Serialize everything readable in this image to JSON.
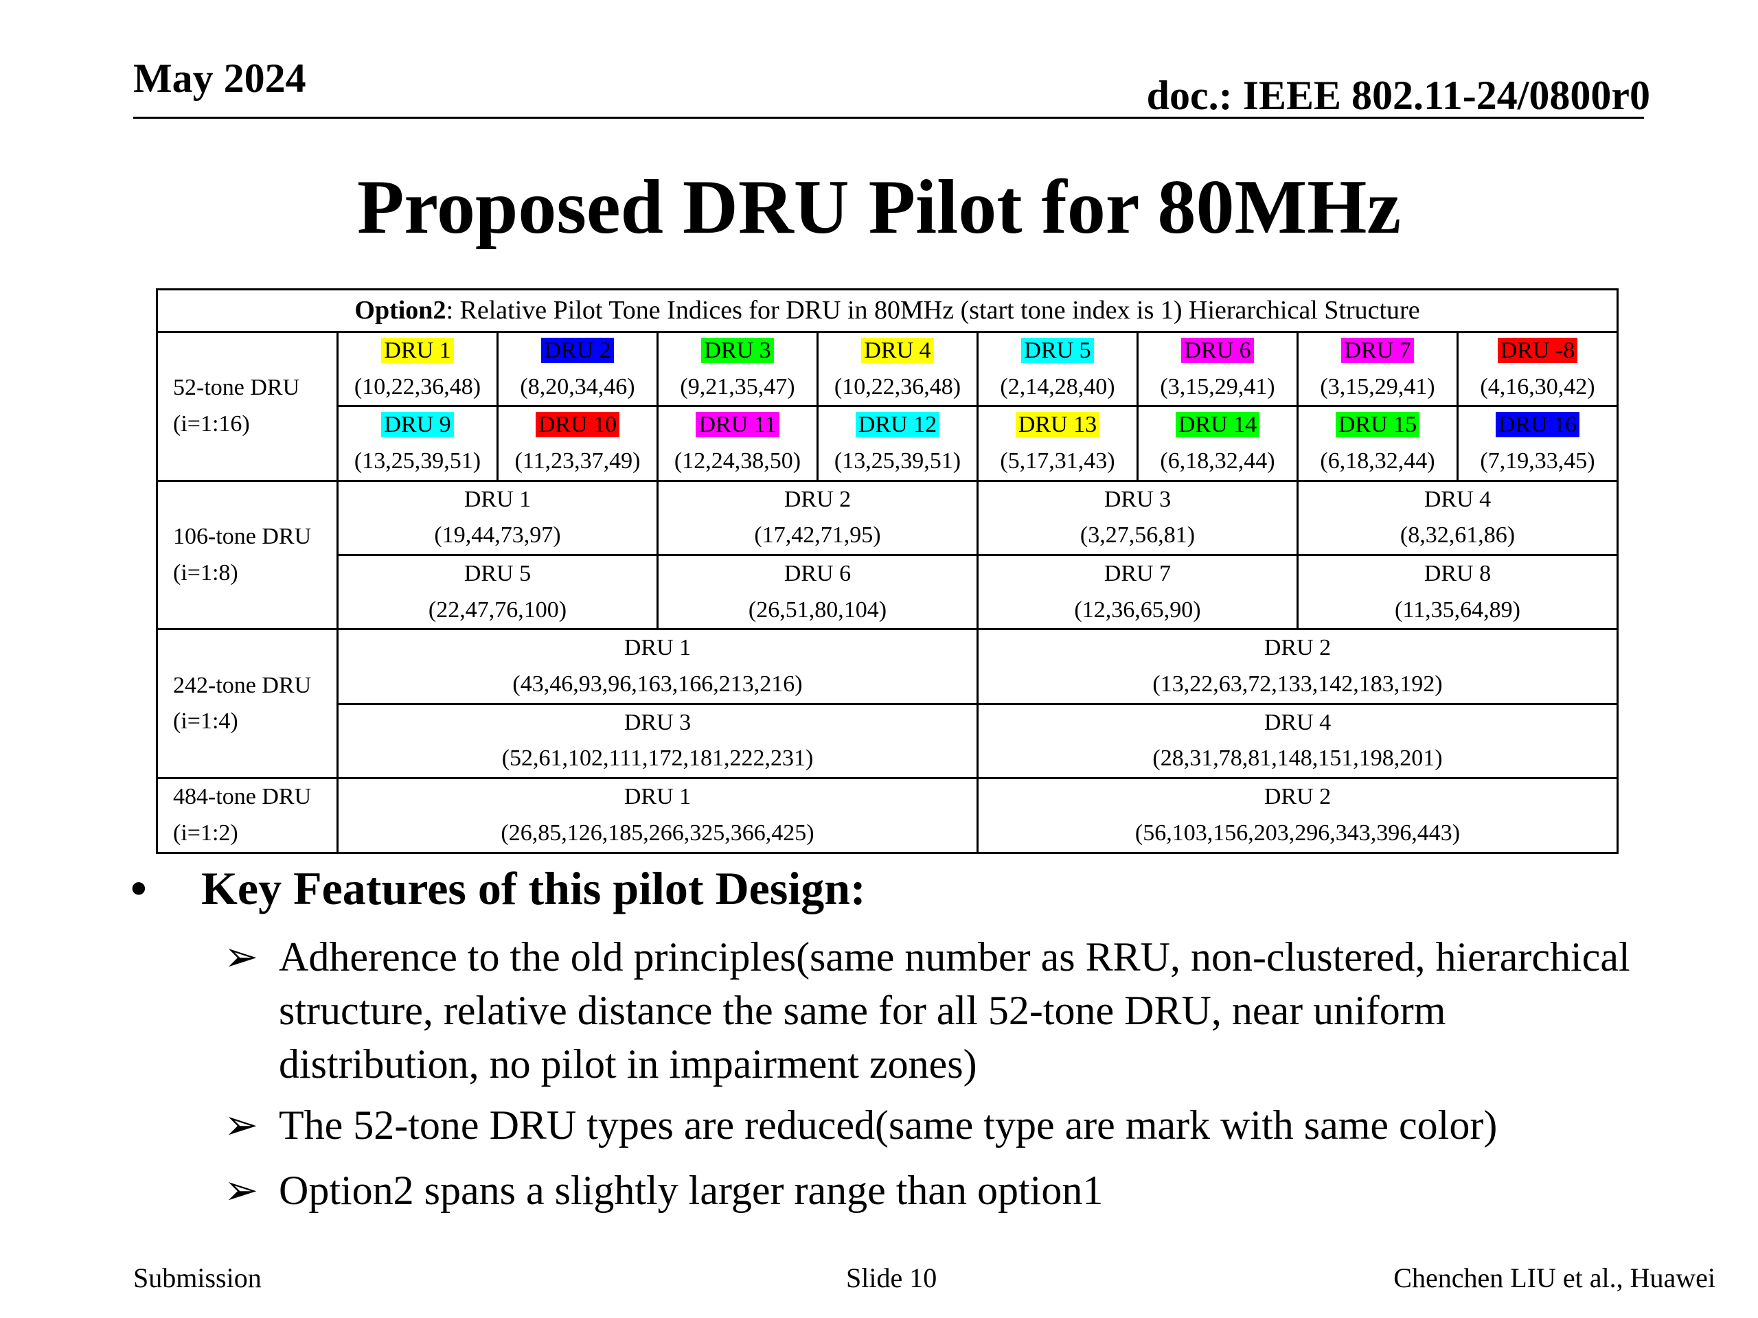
{
  "header": {
    "date": "May 2024",
    "doc": "doc.: IEEE 802.11-24/0800r0"
  },
  "title": "Proposed DRU Pilot for 80MHz",
  "table": {
    "caption_bold": "Option2",
    "caption_rest": ": Relative Pilot Tone Indices for DRU in 80MHz (start tone index is 1)  Hierarchical Structure",
    "tone52": {
      "label": "52-tone DRU",
      "range": "(i=1:16)",
      "cells": [
        {
          "name": "DRU 1",
          "idx": "(10,22,36,48)",
          "color": "#ffff00"
        },
        {
          "name": "DRU 2",
          "idx": "(8,20,34,46)",
          "color": "#0000ff"
        },
        {
          "name": "DRU 3",
          "idx": "(9,21,35,47)",
          "color": "#00ff00"
        },
        {
          "name": "DRU 4",
          "idx": "(10,22,36,48)",
          "color": "#ffff00"
        },
        {
          "name": "DRU 5",
          "idx": "(2,14,28,40)",
          "color": "#00ffff"
        },
        {
          "name": "DRU 6",
          "idx": "(3,15,29,41)",
          "color": "#ff00ff"
        },
        {
          "name": "DRU 7",
          "idx": "(3,15,29,41)",
          "color": "#ff00ff"
        },
        {
          "name": "DRU -8",
          "idx": "(4,16,30,42)",
          "color": "#ff0000"
        },
        {
          "name": "DRU 9",
          "idx": "(13,25,39,51)",
          "color": "#00ffff"
        },
        {
          "name": "DRU 10",
          "idx": "(11,23,37,49)",
          "color": "#ff0000"
        },
        {
          "name": "DRU 11",
          "idx": "(12,24,38,50)",
          "color": "#ff00ff"
        },
        {
          "name": "DRU 12",
          "idx": "(13,25,39,51)",
          "color": "#00ffff"
        },
        {
          "name": "DRU 13",
          "idx": "(5,17,31,43)",
          "color": "#ffff00"
        },
        {
          "name": "DRU 14",
          "idx": "(6,18,32,44)",
          "color": "#00ff00"
        },
        {
          "name": "DRU 15",
          "idx": "(6,18,32,44)",
          "color": "#00ff00"
        },
        {
          "name": "DRU 16",
          "idx": "(7,19,33,45)",
          "color": "#0000ff"
        }
      ]
    },
    "tone106": {
      "label": "106-tone DRU",
      "range": "(i=1:8)",
      "cells": [
        {
          "name": "DRU 1",
          "idx": "(19,44,73,97)"
        },
        {
          "name": "DRU 2",
          "idx": "(17,42,71,95)"
        },
        {
          "name": "DRU 3",
          "idx": "(3,27,56,81)"
        },
        {
          "name": "DRU 4",
          "idx": "(8,32,61,86)"
        },
        {
          "name": "DRU 5",
          "idx": "(22,47,76,100)"
        },
        {
          "name": "DRU 6",
          "idx": "(26,51,80,104)"
        },
        {
          "name": "DRU 7",
          "idx": "(12,36,65,90)"
        },
        {
          "name": "DRU 8",
          "idx": "(11,35,64,89)"
        }
      ]
    },
    "tone242": {
      "label": "242-tone DRU",
      "range": "(i=1:4)",
      "cells": [
        {
          "name": "DRU 1",
          "idx": "(43,46,93,96,163,166,213,216)"
        },
        {
          "name": "DRU 2",
          "idx": "(13,22,63,72,133,142,183,192)"
        },
        {
          "name": "DRU 3",
          "idx": "(52,61,102,111,172,181,222,231)"
        },
        {
          "name": "DRU 4",
          "idx": "(28,31,78,81,148,151,198,201)"
        }
      ]
    },
    "tone484": {
      "label": "484-tone DRU",
      "range": "(i=1:2)",
      "cells": [
        {
          "name": "DRU 1",
          "idx": "(26,85,126,185,266,325,366,425)"
        },
        {
          "name": "DRU 2",
          "idx": "(56,103,156,203,296,343,396,443)"
        }
      ]
    }
  },
  "bullets": {
    "marker": "•",
    "heading": "Key Features of this pilot Design:",
    "arrow": "➢",
    "items": [
      "Adherence to the old principles(same number as RRU, non-clustered, hierarchical structure, relative distance the same for all 52-tone DRU, near uniform distribution, no pilot in impairment zones)",
      "The 52-tone DRU types are reduced(same type are mark with same color)",
      "Option2 spans a slightly larger range than option1"
    ]
  },
  "footer": {
    "left": "Submission",
    "center": "Slide 10",
    "right": "Chenchen LIU et al., Huawei"
  }
}
